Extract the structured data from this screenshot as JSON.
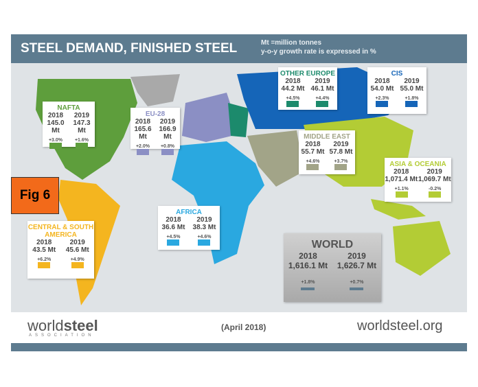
{
  "header": {
    "title": "STEEL DEMAND, FINISHED STEEL",
    "notes": [
      "Mt =million tonnes",
      "y-o-y growth rate is expressed in %"
    ]
  },
  "figure_label": "Fig 6",
  "regions": [
    {
      "name": "NAFTA",
      "color": "#5e9e3c",
      "years": [
        "2018",
        "2019"
      ],
      "demand": [
        "145.0 Mt",
        "147.3 Mt"
      ],
      "growth": [
        "+3.0%",
        "+1.6%"
      ]
    },
    {
      "name": "EU-28",
      "color": "#8b8fc4",
      "years": [
        "2018",
        "2019"
      ],
      "demand": [
        "165.6 Mt",
        "166.9 Mt"
      ],
      "growth": [
        "+2.0%",
        "+0.8%"
      ]
    },
    {
      "name": "OTHER EUROPE",
      "color": "#1c8a6c",
      "years": [
        "2018",
        "2019"
      ],
      "demand": [
        "44.2 Mt",
        "46.1 Mt"
      ],
      "growth": [
        "+4.5%",
        "+4.4%"
      ]
    },
    {
      "name": "CIS",
      "color": "#1565b8",
      "years": [
        "2018",
        "2019"
      ],
      "demand": [
        "54.0 Mt",
        "55.0 Mt"
      ],
      "growth": [
        "+2.3%",
        "+1.8%"
      ]
    },
    {
      "name": "MIDDLE EAST",
      "color": "#a2a488",
      "years": [
        "2018",
        "2019"
      ],
      "demand": [
        "55.7 Mt",
        "57.8 Mt"
      ],
      "growth": [
        "+4.6%",
        "+3.7%"
      ]
    },
    {
      "name": "ASIA & OCEANIA",
      "color": "#b3cc35",
      "years": [
        "2018",
        "2019"
      ],
      "demand": [
        "1,071.4 Mt",
        "1,069.7 Mt"
      ],
      "growth": [
        "+1.1%",
        "-0.2%"
      ]
    },
    {
      "name": "AFRICA",
      "color": "#2aa8e0",
      "years": [
        "2018",
        "2019"
      ],
      "demand": [
        "36.6 Mt",
        "38.3 Mt"
      ],
      "growth": [
        "+4.5%",
        "+4.6%"
      ]
    },
    {
      "name": "CENTRAL & SOUTH AMERICA",
      "color": "#f4b51f",
      "years": [
        "2018",
        "2019"
      ],
      "demand": [
        "43.5 Mt",
        "45.6 Mt"
      ],
      "growth": [
        "+6.2%",
        "+4.9%"
      ]
    },
    {
      "name": "WORLD",
      "color": "#5d7b8f",
      "years": [
        "2018",
        "2019"
      ],
      "demand": [
        "1,616.1 Mt",
        "1,626.7 Mt"
      ],
      "growth": [
        "+1.8%",
        "+0.7%"
      ]
    }
  ],
  "footer": {
    "logo_a": "world",
    "logo_b": "steel",
    "logo_sub": "ASSOCIATION",
    "date": "(April 2018)",
    "url": "worldsteel.org"
  }
}
